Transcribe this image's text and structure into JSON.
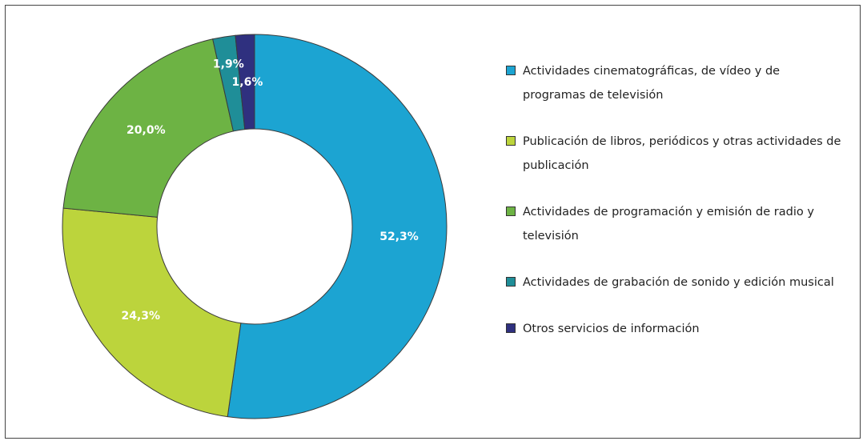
{
  "chart_data": {
    "type": "donut",
    "categories": [
      "Actividades cinematográficas, de vídeo y de programas de televisión",
      "Publicación de libros, periódicos y otras actividades de publicación",
      "Actividades de programación y emisión de radio y televisión",
      "Actividades de grabación de sonido y edición musical",
      "Otros servicios de información"
    ],
    "values": [
      52.3,
      24.3,
      20.0,
      1.9,
      1.6
    ],
    "value_labels": [
      "52,3%",
      "24,3%",
      "20,0%",
      "1,9%",
      "1,6%"
    ],
    "colors": [
      "#1ca4d2",
      "#bcd43c",
      "#6db344",
      "#1f8e98",
      "#2f307f"
    ]
  }
}
